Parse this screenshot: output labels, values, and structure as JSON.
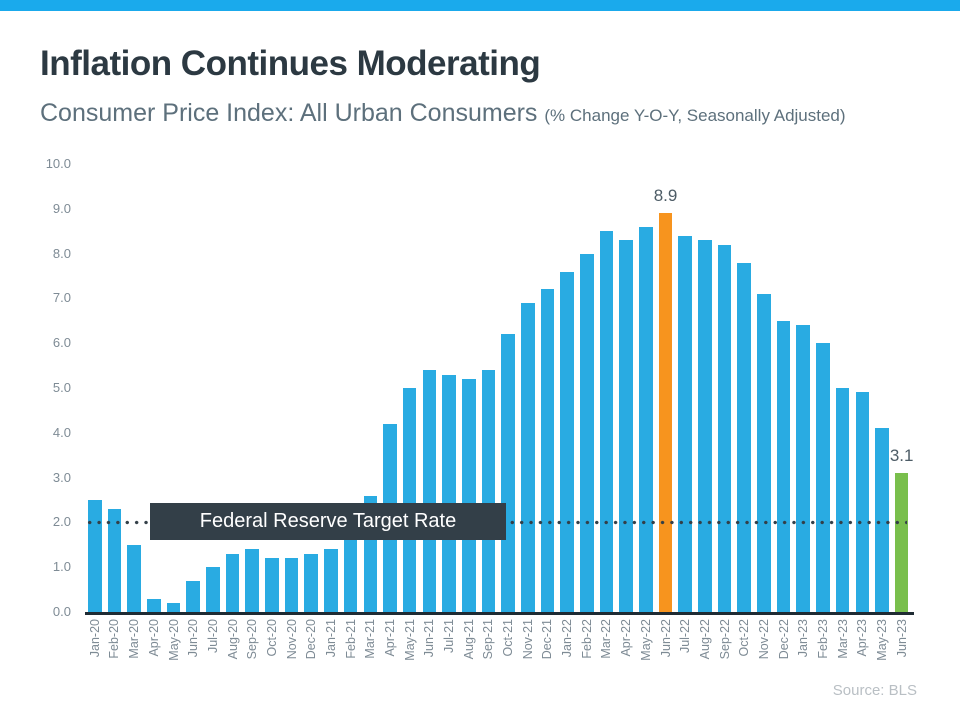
{
  "header": {
    "title": "Inflation Continues Moderating",
    "subtitle": "Consumer Price Index: All Urban Consumers",
    "subtitle_note": "(% Change Y-O-Y, Seasonally Adjusted)"
  },
  "footer": {
    "source": "Source: BLS"
  },
  "colors": {
    "accent_bar": "#1aaaec",
    "bar_default": "#29abe2",
    "bar_peak": "#f7941e",
    "bar_latest": "#79bf4c",
    "reference": "#333f48",
    "axis": "#1f2b33",
    "tick_text": "#7e8b95",
    "value_label_text": "#4d5c66"
  },
  "chart_data": {
    "type": "bar",
    "title": "Consumer Price Index: All Urban Consumers (% Change Y-O-Y, Seasonally Adjusted)",
    "xlabel": "",
    "ylabel": "",
    "ylim": [
      0,
      10
    ],
    "grid": false,
    "legend": false,
    "y_ticks": [
      "0.0",
      "1.0",
      "2.0",
      "3.0",
      "4.0",
      "5.0",
      "6.0",
      "7.0",
      "8.0",
      "9.0",
      "10.0"
    ],
    "categories": [
      "Jan-20",
      "Feb-20",
      "Mar-20",
      "Apr-20",
      "May-20",
      "Jun-20",
      "Jul-20",
      "Aug-20",
      "Sep-20",
      "Oct-20",
      "Nov-20",
      "Dec-20",
      "Jan-21",
      "Feb-21",
      "Mar-21",
      "Apr-21",
      "May-21",
      "Jun-21",
      "Jul-21",
      "Aug-21",
      "Sep-21",
      "Oct-21",
      "Nov-21",
      "Dec-21",
      "Jan-22",
      "Feb-22",
      "Mar-22",
      "Apr-22",
      "May-22",
      "Jun-22",
      "Jul-22",
      "Aug-22",
      "Sep-22",
      "Oct-22",
      "Nov-22",
      "Dec-22",
      "Jan-23",
      "Feb-23",
      "Mar-23",
      "Apr-23",
      "May-23",
      "Jun-23"
    ],
    "values": [
      2.5,
      2.3,
      1.5,
      0.3,
      0.2,
      0.7,
      1.0,
      1.3,
      1.4,
      1.2,
      1.2,
      1.3,
      1.4,
      1.7,
      2.6,
      4.2,
      5.0,
      5.4,
      5.3,
      5.2,
      5.4,
      6.2,
      6.9,
      7.2,
      7.6,
      8.0,
      8.5,
      8.3,
      8.6,
      8.9,
      8.4,
      8.3,
      8.2,
      7.8,
      7.1,
      6.5,
      6.4,
      6.0,
      5.0,
      4.9,
      4.1,
      3.1
    ],
    "highlight_colors": {
      "Jun-22": "#f7941e",
      "Jun-23": "#79bf4c"
    },
    "annotations": [
      {
        "category": "Jun-22",
        "label": "8.9"
      },
      {
        "category": "Jun-23",
        "label": "3.1"
      }
    ],
    "reference_line": {
      "value": 2.0,
      "style": "dotted",
      "label": "Federal Reserve Target Rate"
    }
  }
}
